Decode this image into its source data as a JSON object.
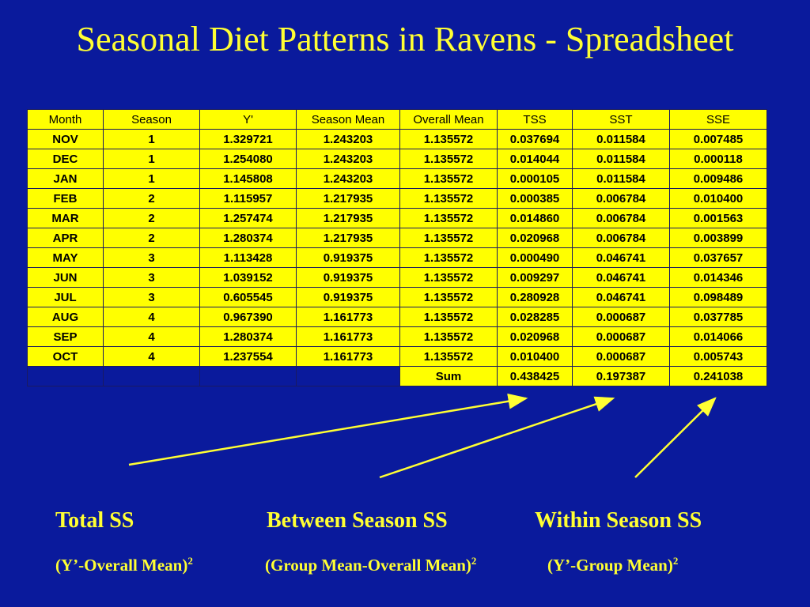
{
  "title": "Seasonal Diet Patterns in Ravens - Spreadsheet",
  "table": {
    "headers": [
      "Month",
      "Season",
      "Y'",
      "Season Mean",
      "Overall Mean",
      "TSS",
      "SST",
      "SSE"
    ],
    "rows": [
      [
        "NOV",
        "1",
        "1.329721",
        "1.243203",
        "1.135572",
        "0.037694",
        "0.011584",
        "0.007485"
      ],
      [
        "DEC",
        "1",
        "1.254080",
        "1.243203",
        "1.135572",
        "0.014044",
        "0.011584",
        "0.000118"
      ],
      [
        "JAN",
        "1",
        "1.145808",
        "1.243203",
        "1.135572",
        "0.000105",
        "0.011584",
        "0.009486"
      ],
      [
        "FEB",
        "2",
        "1.115957",
        "1.217935",
        "1.135572",
        "0.000385",
        "0.006784",
        "0.010400"
      ],
      [
        "MAR",
        "2",
        "1.257474",
        "1.217935",
        "1.135572",
        "0.014860",
        "0.006784",
        "0.001563"
      ],
      [
        "APR",
        "2",
        "1.280374",
        "1.217935",
        "1.135572",
        "0.020968",
        "0.006784",
        "0.003899"
      ],
      [
        "MAY",
        "3",
        "1.113428",
        "0.919375",
        "1.135572",
        "0.000490",
        "0.046741",
        "0.037657"
      ],
      [
        "JUN",
        "3",
        "1.039152",
        "0.919375",
        "1.135572",
        "0.009297",
        "0.046741",
        "0.014346"
      ],
      [
        "JUL",
        "3",
        "0.605545",
        "0.919375",
        "1.135572",
        "0.280928",
        "0.046741",
        "0.098489"
      ],
      [
        "AUG",
        "4",
        "0.967390",
        "1.161773",
        "1.135572",
        "0.028285",
        "0.000687",
        "0.037785"
      ],
      [
        "SEP",
        "4",
        "1.280374",
        "1.161773",
        "1.135572",
        "0.020968",
        "0.000687",
        "0.014066"
      ],
      [
        "OCT",
        "4",
        "1.237554",
        "1.161773",
        "1.135572",
        "0.010400",
        "0.000687",
        "0.005743"
      ]
    ],
    "sum_row": {
      "label": "Sum",
      "tss": "0.438425",
      "sst": "0.197387",
      "sse": "0.241038"
    }
  },
  "labels": {
    "total_ss": "Total SS",
    "between_ss": "Between Season SS",
    "within_ss": "Within Season SS",
    "total_formula": "(Y’-Overall Mean)",
    "between_formula": "(Group Mean-Overall Mean)",
    "within_formula": "(Y’-Group Mean)",
    "exponent": "2"
  },
  "colors": {
    "background": "#0a1a9c",
    "accent": "#ffff00",
    "text": "#ffff33"
  }
}
